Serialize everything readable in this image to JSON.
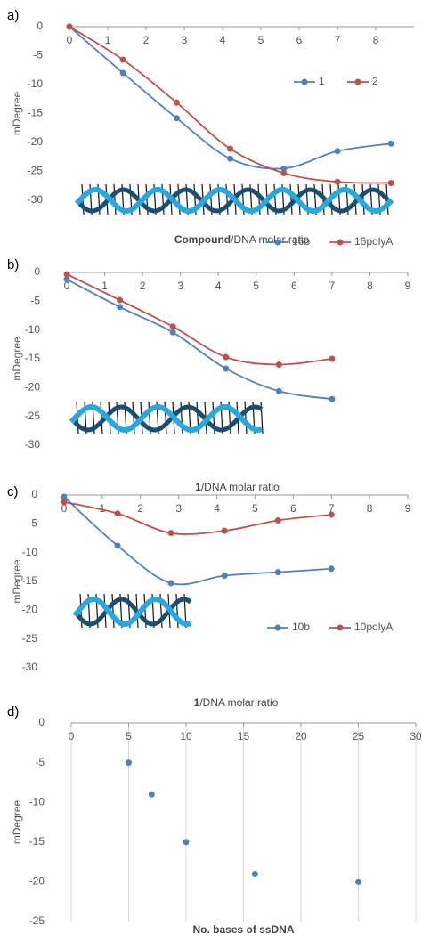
{
  "chart_data": [
    {
      "type": "line",
      "label": "a)",
      "ylabel": "mDegree",
      "xlabel": {
        "bold": "Compound",
        "text": "/DNA molar ratio"
      },
      "x": [
        0,
        1.4,
        2.8,
        4.2,
        5.6,
        7,
        8.4
      ],
      "xlim": [
        0,
        9
      ],
      "xticks": [
        0,
        1,
        2,
        3,
        4,
        5,
        6,
        7,
        8
      ],
      "ylim": [
        -30,
        0
      ],
      "yticks": [
        0,
        -5,
        -10,
        -15,
        -20,
        -25,
        -30
      ],
      "grid": false,
      "legend": "top-right",
      "series": [
        {
          "name": "1",
          "color": "#4f81bd",
          "values": [
            0,
            -8,
            -15.8,
            -22.8,
            -24.5,
            -21.5,
            -20.2
          ]
        },
        {
          "name": "2",
          "color": "#c0504d",
          "values": [
            0,
            -5.7,
            -13.1,
            -21.1,
            -25.3,
            -26.8,
            -27.0
          ]
        }
      ]
    },
    {
      "type": "line",
      "label": "b)",
      "ylabel": "mDegree",
      "xlabel": {
        "bold": "1",
        "text": "/DNA molar ratio"
      },
      "x": [
        0,
        1.4,
        2.8,
        4.2,
        5.6,
        7
      ],
      "xlim": [
        0,
        9
      ],
      "xticks": [
        0,
        1,
        2,
        3,
        4,
        5,
        6,
        7,
        8,
        9
      ],
      "ylim": [
        -30,
        0
      ],
      "yticks": [
        0,
        -5,
        -10,
        -15,
        -20,
        -25,
        -30
      ],
      "grid": false,
      "legend": "top-right",
      "series": [
        {
          "name": "16b",
          "color": "#4f81bd",
          "values": [
            -1.2,
            -6,
            -10.4,
            -16.7,
            -20.6,
            -22
          ]
        },
        {
          "name": "16polyA",
          "color": "#c0504d",
          "values": [
            -0.3,
            -4.8,
            -9.4,
            -14.7,
            -16,
            -15
          ]
        }
      ]
    },
    {
      "type": "line",
      "label": "c)",
      "ylabel": "mDegree",
      "xlabel": {
        "bold": "1",
        "text": "/DNA molar ratio"
      },
      "x": [
        0,
        1.4,
        2.8,
        4.2,
        5.6,
        7
      ],
      "xlim": [
        0,
        9
      ],
      "xticks": [
        0,
        1,
        2,
        3,
        4,
        5,
        6,
        7,
        8,
        9
      ],
      "ylim": [
        -30,
        0
      ],
      "yticks": [
        0,
        -5,
        -10,
        -15,
        -20,
        -25,
        -30
      ],
      "grid": false,
      "legend": "bottom-right",
      "series": [
        {
          "name": "10b",
          "color": "#4f81bd",
          "values": [
            -0.3,
            -8.8,
            -15.3,
            -14,
            -13.4,
            -12.8
          ]
        },
        {
          "name": "10polyA",
          "color": "#c0504d",
          "values": [
            -1.2,
            -3.2,
            -6.6,
            -6.2,
            -4.4,
            -3.4
          ]
        }
      ]
    },
    {
      "type": "scatter",
      "label": "d)",
      "ylabel": "mDegree",
      "xlabel": {
        "bold": "No. bases of ssDNA"
      },
      "x": [
        5,
        7,
        10,
        16,
        25
      ],
      "xlim": [
        0,
        30
      ],
      "xticks": [
        0,
        5,
        10,
        15,
        20,
        25,
        30
      ],
      "ylim": [
        -25,
        0
      ],
      "yticks": [
        0,
        -5,
        -10,
        -15,
        -20,
        -25
      ],
      "grid": true,
      "series": [
        {
          "color": "#4f81bd",
          "values": [
            -5,
            -9,
            -15,
            -19,
            -20
          ]
        }
      ]
    }
  ]
}
